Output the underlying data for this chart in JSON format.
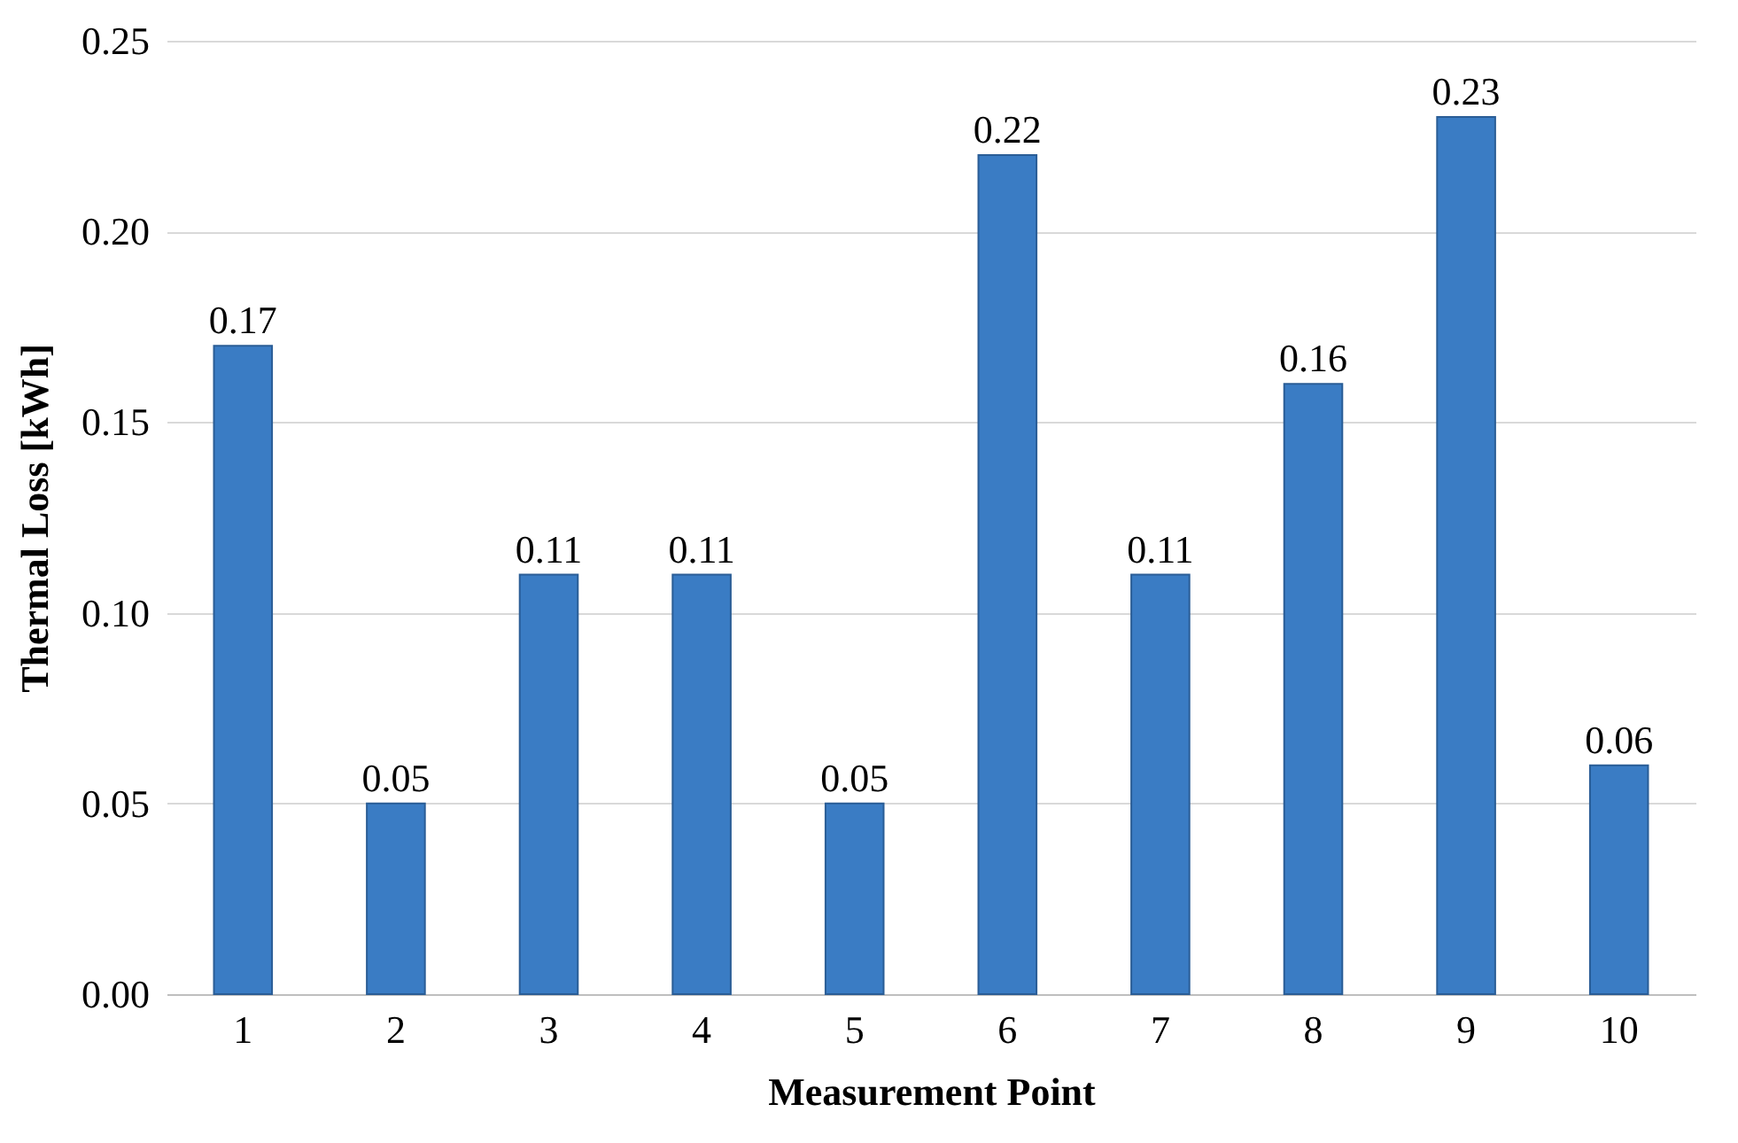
{
  "chart_data": {
    "type": "bar",
    "xlabel": "Measurement Point",
    "ylabel": "Thermal Loss  [kWh]",
    "categories": [
      "1",
      "2",
      "3",
      "4",
      "5",
      "6",
      "7",
      "8",
      "9",
      "10"
    ],
    "values": [
      0.17,
      0.05,
      0.11,
      0.11,
      0.05,
      0.22,
      0.11,
      0.16,
      0.23,
      0.06
    ],
    "color": "#3a7cc4",
    "ylim": [
      0,
      0.25
    ],
    "yticks": [
      {
        "value": 0,
        "label": "0.00"
      },
      {
        "value": 0.05,
        "label": "0.05"
      },
      {
        "value": 0.1,
        "label": "0.10"
      },
      {
        "value": 0.15,
        "label": "0.15"
      },
      {
        "value": 0.2,
        "label": "0.20"
      },
      {
        "value": 0.25,
        "label": "0.25"
      }
    ],
    "grid": "y",
    "data_labels": true
  }
}
